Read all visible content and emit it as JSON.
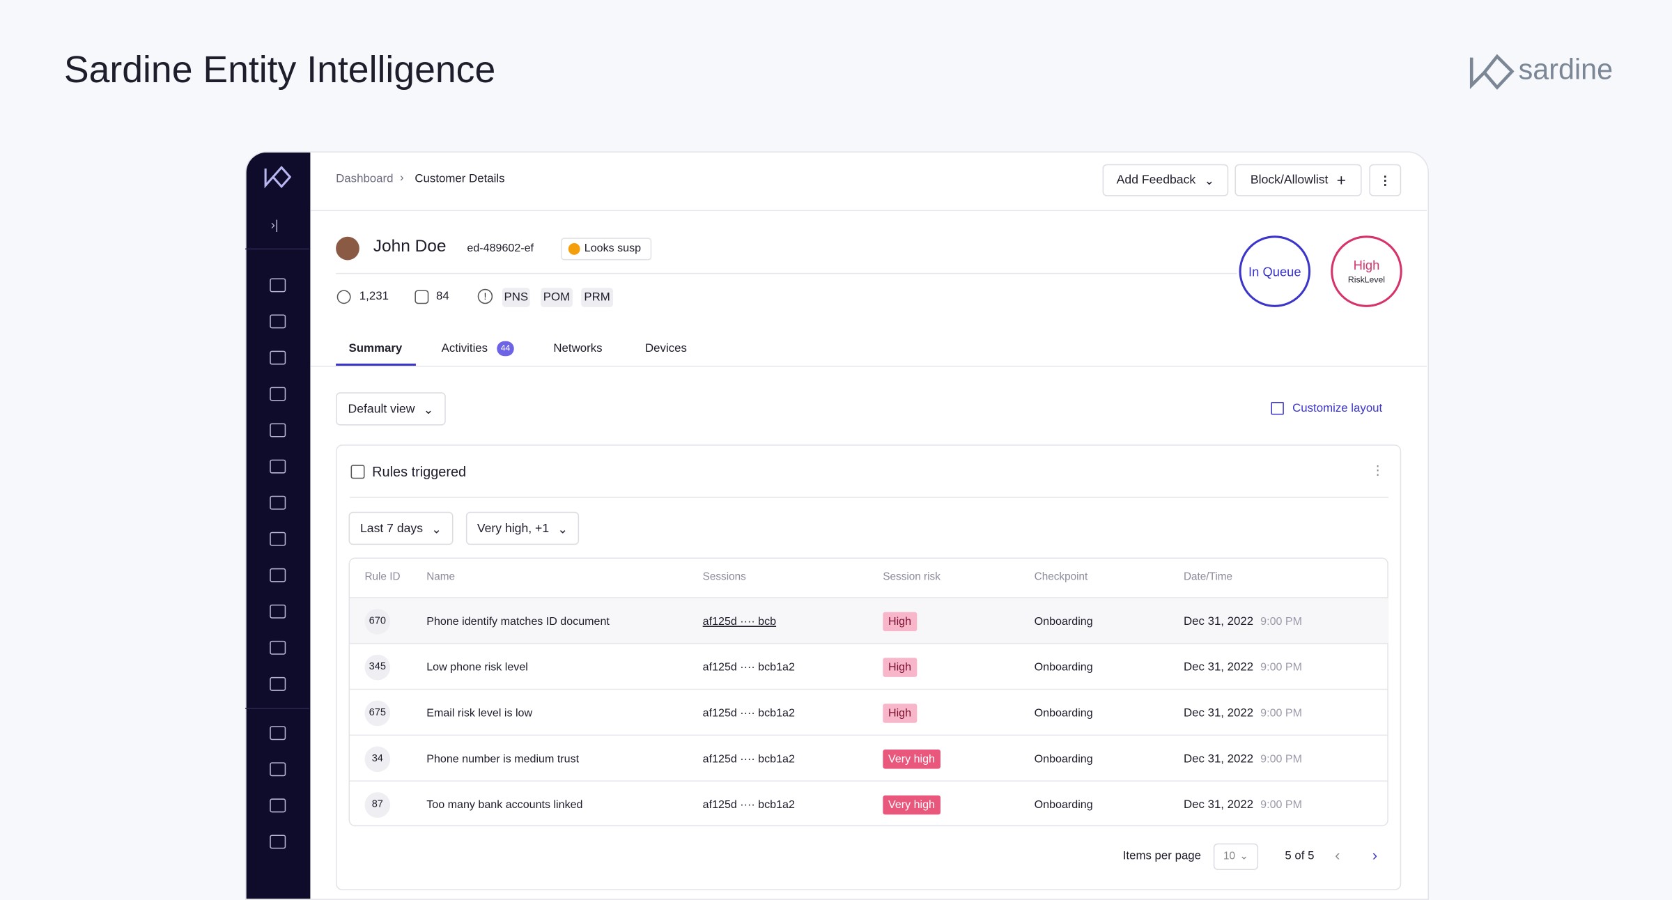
{
  "header": {
    "title": "Sardine Entity Intelligence",
    "brand": "sardine"
  },
  "app": {
    "breadcrumb": [
      "Dashboard",
      "Customer Details"
    ],
    "buttons": [
      "Add Feedback",
      "Block/Allowlist"
    ],
    "customer": {
      "name": "John Doe",
      "id": "ed-489602-ef",
      "badge": "Looks susp",
      "stats": [
        "1,231",
        "84"
      ],
      "tags": [
        "PNS",
        "POM",
        "PRM"
      ]
    },
    "status": {
      "queue": "In Queue",
      "risk": "High",
      "risk_caption": "RiskLevel"
    },
    "tabs": [
      "Summary",
      "Activities",
      "Networks",
      "Devices"
    ],
    "activities_count": "44",
    "view": "Default view",
    "customize": "Customize layout",
    "panel": {
      "title": "Rules triggered",
      "filters": [
        "Last 7 days",
        "Very high, +1"
      ],
      "columns": [
        "Rule ID",
        "Name",
        "Sessions",
        "Session risk",
        "Checkpoint",
        "Date/Time"
      ],
      "rows": [
        [
          "670",
          "Phone identify matches ID document",
          "af125d ···· bcb",
          "High",
          "Onboarding",
          "Dec 31, 2022",
          "9:00 PM"
        ],
        [
          "345",
          "Low phone risk level",
          "af125d ···· bcb1a2",
          "High",
          "Onboarding",
          "Dec 31, 2022",
          "9:00 PM"
        ],
        [
          "675",
          "Email risk level is low",
          "af125d ···· bcb1a2",
          "High",
          "Onboarding",
          "Dec 31, 2022",
          "9:00 PM"
        ],
        [
          "34",
          "Phone number is medium trust",
          "af125d ···· bcb1a2",
          "Very high",
          "Onboarding",
          "Dec 31, 2022",
          "9:00 PM"
        ],
        [
          "87",
          "Too many bank accounts linked",
          "af125d ···· bcb1a2",
          "Very high",
          "Onboarding",
          "Dec 31, 2022",
          "9:00 PM"
        ]
      ],
      "pagination": {
        "label": "Items per page",
        "per_page": "10",
        "range": "5 of 5"
      }
    }
  }
}
